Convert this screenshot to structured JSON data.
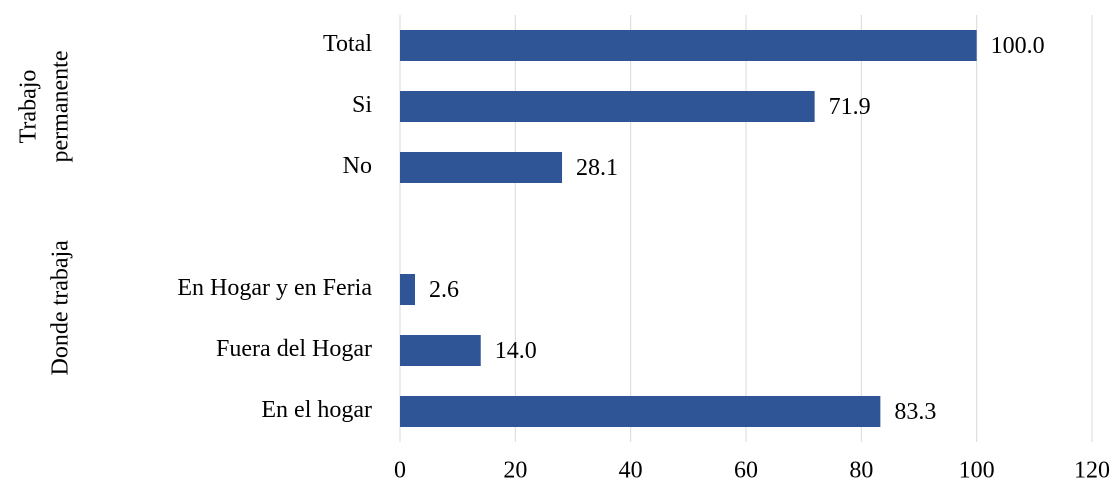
{
  "chart_data": {
    "type": "barh",
    "categories": [
      "Total",
      "Si",
      "No",
      null,
      "En Hogar y en Feria",
      "Fuera del Hogar",
      "En el hogar"
    ],
    "values": [
      100.0,
      71.9,
      28.1,
      null,
      2.6,
      14.0,
      83.3
    ],
    "value_labels": [
      "100.0",
      "71.9",
      "28.1",
      null,
      "2.6",
      "14.0",
      "83.3"
    ],
    "group_labels": [
      [
        "Trabajo",
        "permanente"
      ],
      [
        "Donde trabaja"
      ]
    ],
    "color": "#2f5597",
    "xlim": [
      0,
      120
    ],
    "xticks": [
      0,
      20,
      40,
      60,
      80,
      100,
      120
    ],
    "grid": true
  }
}
